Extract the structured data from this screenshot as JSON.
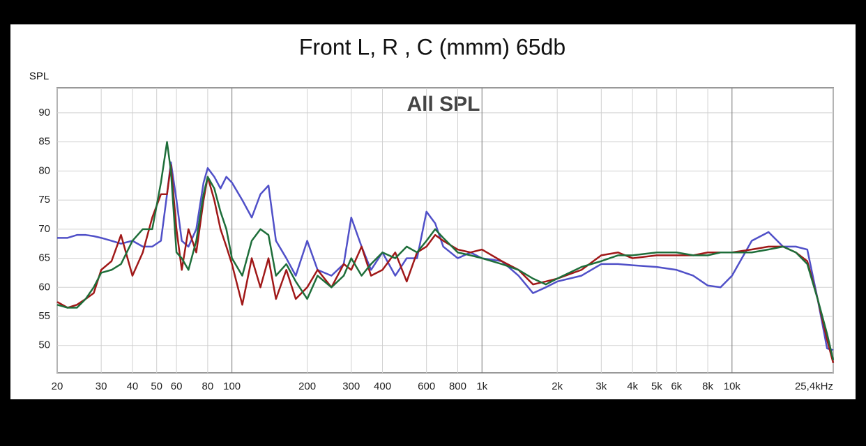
{
  "chart_data": {
    "type": "line",
    "title": "Front L, R , C (mmm) 65db",
    "ylabel": "SPL",
    "annotation": "All SPL",
    "xscale": "log",
    "grid": true,
    "xlim": [
      20,
      25400
    ],
    "ylim": [
      45.3,
      94.3
    ],
    "yticks": [
      50,
      55,
      60,
      65,
      70,
      75,
      80,
      85,
      90
    ],
    "xticks": [
      20,
      30,
      40,
      50,
      60,
      80,
      100,
      200,
      300,
      400,
      600,
      800,
      {
        "value": 1000,
        "label": "1k"
      },
      {
        "value": 2000,
        "label": "2k"
      },
      {
        "value": 3000,
        "label": "3k"
      },
      {
        "value": 4000,
        "label": "4k"
      },
      {
        "value": 5000,
        "label": "5k"
      },
      {
        "value": 6000,
        "label": "6k"
      },
      {
        "value": 8000,
        "label": "8k"
      },
      {
        "value": 10000,
        "label": "10k"
      },
      {
        "value": 25400,
        "label": "25,4kHz"
      }
    ],
    "x": [
      20,
      22,
      24,
      26,
      28,
      30,
      33,
      36,
      40,
      44,
      48,
      52,
      55,
      57,
      60,
      63,
      67,
      72,
      77,
      80,
      85,
      90,
      95,
      100,
      110,
      120,
      130,
      140,
      150,
      165,
      180,
      200,
      220,
      250,
      280,
      300,
      330,
      360,
      400,
      450,
      500,
      550,
      600,
      650,
      700,
      800,
      900,
      1000,
      1200,
      1400,
      1600,
      1800,
      2000,
      2500,
      3000,
      3500,
      4000,
      5000,
      6000,
      7000,
      8000,
      9000,
      10000,
      12000,
      14000,
      16000,
      18000,
      20000,
      22000,
      24000,
      25400
    ],
    "series": [
      {
        "color": "#5050c8",
        "values": [
          68.5,
          68.5,
          69,
          69,
          68.8,
          68.5,
          68,
          67.5,
          68,
          67,
          67,
          68,
          76,
          81.5,
          75,
          68,
          67,
          70,
          78,
          80.5,
          79,
          77,
          79,
          78,
          75,
          72,
          76,
          77.5,
          68,
          65,
          62,
          68,
          63,
          62,
          64,
          72,
          67,
          63,
          66,
          62,
          65,
          65,
          73,
          71,
          67,
          65,
          66,
          65,
          64.5,
          62,
          59,
          60,
          61,
          62,
          64,
          64,
          63.8,
          63.5,
          63,
          62,
          60.3,
          60,
          62,
          68,
          69.5,
          67,
          67,
          66.5,
          58,
          49.5,
          49.2
        ]
      },
      {
        "color": "#a01818",
        "values": [
          57.5,
          56.5,
          57,
          58,
          59,
          63,
          64.5,
          69,
          62,
          66,
          72,
          76,
          76,
          81,
          70,
          63,
          70,
          66,
          75,
          79,
          75,
          70,
          67,
          64,
          57,
          65,
          60,
          65,
          58,
          63,
          58,
          60,
          63,
          60,
          64,
          63,
          67,
          62,
          63,
          66,
          61,
          66,
          67,
          69,
          68,
          66.5,
          66,
          66.5,
          64.5,
          63,
          60.5,
          61,
          61.5,
          63,
          65.5,
          66,
          65,
          65.5,
          65.5,
          65.5,
          66,
          66,
          66,
          66.5,
          67,
          67,
          66,
          64.5,
          58,
          51,
          47
        ]
      },
      {
        "color": "#1e6e3a",
        "values": [
          57,
          56.5,
          56.5,
          58,
          60,
          62.5,
          63,
          64,
          68,
          70,
          70,
          78,
          85,
          80,
          66,
          65,
          63,
          68,
          76,
          79,
          77,
          73,
          70,
          65,
          62,
          68,
          70,
          69,
          62,
          64,
          61,
          58,
          62,
          60,
          62,
          65,
          62,
          64,
          66,
          65,
          67,
          66,
          68,
          70,
          68.5,
          66,
          65.5,
          65,
          64,
          63,
          61.5,
          60.5,
          61.5,
          63.5,
          64.5,
          65.5,
          65.5,
          66,
          66,
          65.5,
          65.5,
          66,
          66,
          66,
          66.5,
          67,
          66,
          64,
          58,
          52,
          47.5
        ]
      }
    ]
  }
}
